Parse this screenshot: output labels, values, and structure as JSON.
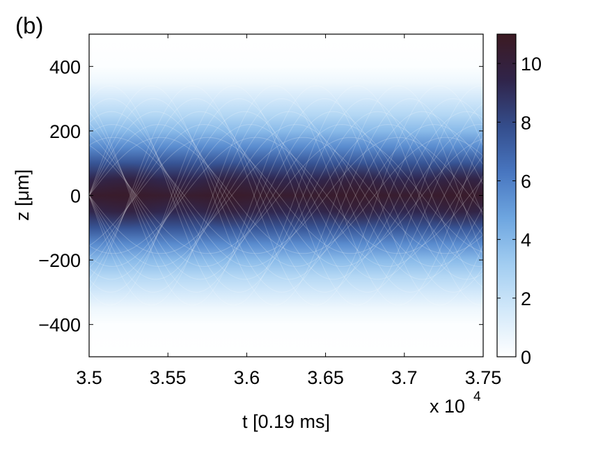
{
  "panel_label": "(b)",
  "chart_data": {
    "type": "heatmap",
    "xlabel": "t [0.19 ms]",
    "ylabel": "z [μm]",
    "x_multiplier": "x 10",
    "x_multiplier_exp": "4",
    "xlim": [
      3.5,
      3.75
    ],
    "ylim": [
      -500,
      500
    ],
    "x_ticks": [
      3.5,
      3.55,
      3.6,
      3.65,
      3.7,
      3.75
    ],
    "x_tick_labels": [
      "3.5",
      "3.55",
      "3.6",
      "3.65",
      "3.7",
      "3.75"
    ],
    "y_ticks": [
      400,
      200,
      0,
      -200,
      -400
    ],
    "y_tick_labels": [
      "400",
      "200",
      "0",
      "−200",
      "−400"
    ],
    "colorbar": {
      "range": [
        0,
        11
      ],
      "ticks": [
        0,
        2,
        4,
        6,
        8,
        10
      ],
      "tick_labels": [
        "0",
        "2",
        "4",
        "6",
        "8",
        "10"
      ],
      "colors": [
        "#ffffff",
        "#d3e9fa",
        "#a2cdf1",
        "#6ea6e0",
        "#4876c0",
        "#344d8c",
        "#30244a",
        "#3c1a22"
      ]
    },
    "profile_z": [
      0,
      50,
      100,
      150,
      200,
      250,
      300,
      350,
      400
    ],
    "profile_value": [
      10.5,
      9.3,
      7.6,
      5.6,
      3.9,
      2.6,
      1.6,
      0.6,
      0.1
    ],
    "density_peaks_t": [
      3.522,
      3.59,
      3.668,
      3.735
    ],
    "grid": false
  }
}
